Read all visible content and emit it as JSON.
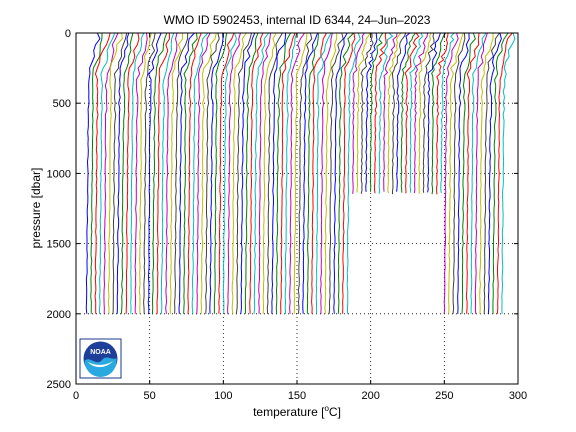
{
  "chart_data": {
    "type": "line",
    "title": "WMO ID 5902453, internal ID 6344, 24–Jun–2023",
    "xlabel": "temperature [",
    "xlabel_unit": "o",
    "xlabel_tail": "C]",
    "ylabel": "pressure [dbar]",
    "xlim": [
      0,
      300
    ],
    "ylim": [
      0,
      2500
    ],
    "y_reversed": true,
    "x_ticks": [
      "0",
      "50",
      "100",
      "150",
      "200",
      "250",
      "300"
    ],
    "y_ticks": [
      "0",
      "500",
      "1000",
      "1500",
      "2000",
      "2500"
    ],
    "grid": "dotted",
    "profile_count": 95,
    "profile_start": 8,
    "profile_step": 3.0,
    "series_colors": [
      "#0000ff",
      "#008000",
      "#ff0000",
      "#00bfbf",
      "#bf00bf",
      "#bfbf00",
      "#404040"
    ],
    "logo": "NOAA"
  }
}
